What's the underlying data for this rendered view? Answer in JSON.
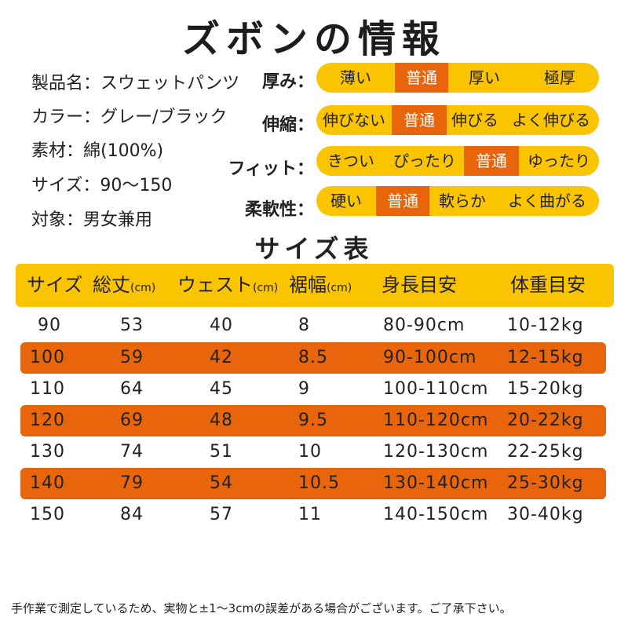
{
  "title": "ズボンの情報",
  "info": [
    "製品名：スウェットパンツ",
    "カラー：グレー/ブラック",
    "素材：綿(100%)",
    "サイズ：90〜150",
    "対象：男女兼用"
  ],
  "attributes": [
    {
      "label": "厚み：",
      "options": [
        "薄い",
        "普通",
        "厚い",
        "極厚"
      ],
      "selected": 1
    },
    {
      "label": "伸縮：",
      "options": [
        "伸びない",
        "普通",
        "伸びる",
        "よく伸びる"
      ],
      "selected": 1
    },
    {
      "label": "フィット：",
      "options": [
        "きつい",
        "ぴったり",
        "普通",
        "ゆったり"
      ],
      "selected": 2
    },
    {
      "label": "柔軟性：",
      "options": [
        "硬い",
        "普通",
        "軟らか",
        "よく曲がる"
      ],
      "selected": 1
    }
  ],
  "size_table": {
    "title": "サイズ表",
    "headers": [
      {
        "main": "サイズ",
        "unit": ""
      },
      {
        "main": "総丈",
        "unit": "(cm)"
      },
      {
        "main": "ウェスト",
        "unit": "(cm)"
      },
      {
        "main": "裾幅",
        "unit": "(cm)"
      },
      {
        "main": "身長目安",
        "unit": ""
      },
      {
        "main": "体重目安",
        "unit": ""
      }
    ],
    "rows": [
      [
        "90",
        "53",
        "40",
        "8",
        "80-90cm",
        "10-12kg"
      ],
      [
        "100",
        "59",
        "42",
        "8.5",
        "90-100cm",
        "12-15kg"
      ],
      [
        "110",
        "64",
        "45",
        "9",
        "100-110cm",
        "15-20kg"
      ],
      [
        "120",
        "69",
        "48",
        "9.5",
        "110-120cm",
        "20-22kg"
      ],
      [
        "130",
        "74",
        "51",
        "10",
        "120-130cm",
        "22-25kg"
      ],
      [
        "140",
        "79",
        "54",
        "10.5",
        "130-140cm",
        "25-30kg"
      ],
      [
        "150",
        "84",
        "57",
        "11",
        "140-150cm",
        "30-40kg"
      ]
    ],
    "highlighted_rows": [
      1,
      3,
      5
    ]
  },
  "footnote": "手作業で測定しているため、実物と±1〜3cmの誤差がある場合がございます。ご了承下さい。",
  "colors": {
    "yellow": "#fbc400",
    "orange": "#e8650c"
  }
}
